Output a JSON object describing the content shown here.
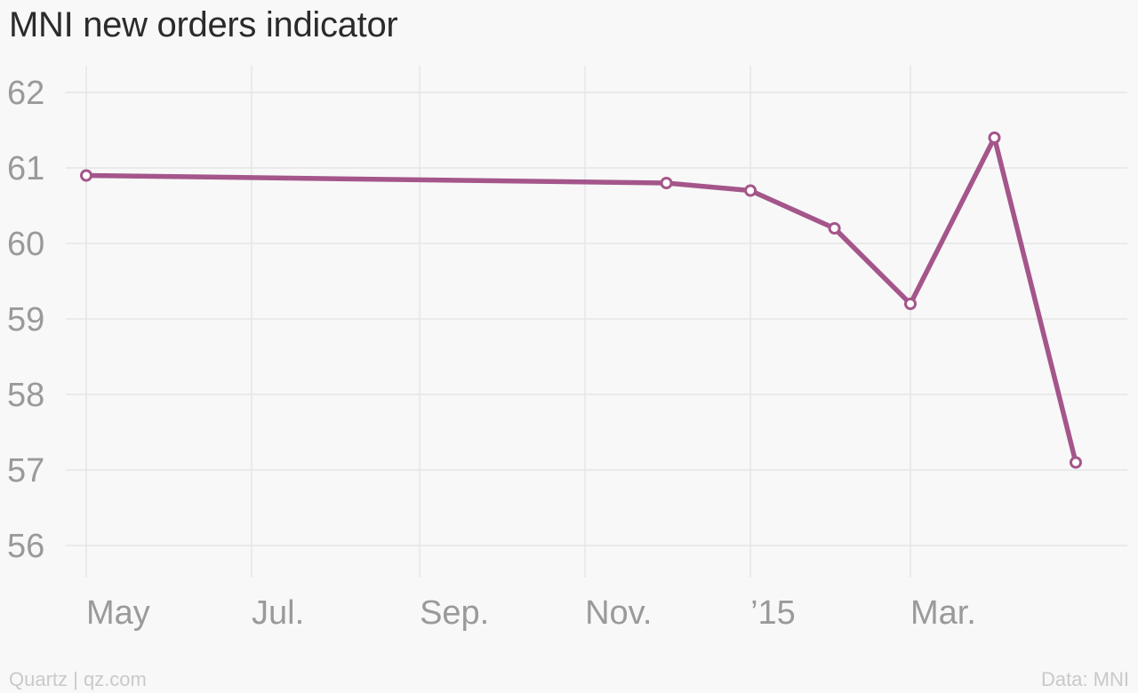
{
  "title": "MNI new orders indicator",
  "footer": {
    "credit": "Quartz | qz.com",
    "source": "Data: MNI"
  },
  "colors": {
    "line": "#a4568a",
    "marker_fill": "#ffffff",
    "grid": "#e6e6e6",
    "tick_text": "#9a9a9a"
  },
  "chart_data": {
    "type": "line",
    "title": "MNI new orders indicator",
    "xlabel": "",
    "ylabel": "",
    "ylim": [
      56,
      62
    ],
    "yticks": [
      56,
      57,
      58,
      59,
      60,
      61,
      62
    ],
    "xlim": [
      "2014-05-01",
      "2015-04-30"
    ],
    "xticks": [
      {
        "date": "2014-05-01",
        "label": "May"
      },
      {
        "date": "2014-07-01",
        "label": "Jul."
      },
      {
        "date": "2014-09-01",
        "label": "Sep."
      },
      {
        "date": "2014-11-01",
        "label": "Nov."
      },
      {
        "date": "2015-01-01",
        "label": "’15"
      },
      {
        "date": "2015-03-01",
        "label": "Mar."
      }
    ],
    "grid": true,
    "legend": "none",
    "series": [
      {
        "points": [
          {
            "x": "2014-05-01",
            "y": 60.9
          },
          {
            "x": "2014-12-01",
            "y": 60.8
          },
          {
            "x": "2015-01-01",
            "y": 60.7
          },
          {
            "x": "2015-02-01",
            "y": 60.2
          },
          {
            "x": "2015-03-01",
            "y": 59.2
          },
          {
            "x": "2015-04-01",
            "y": 61.4
          },
          {
            "x": "2015-05-01",
            "y": 57.1
          }
        ]
      }
    ]
  }
}
